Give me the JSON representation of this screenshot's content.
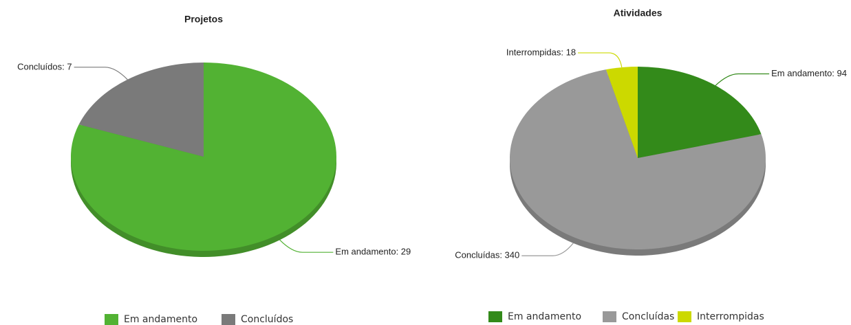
{
  "chart_data": [
    {
      "type": "pie",
      "title": "Projetos",
      "categories": [
        "Em andamento",
        "Concluídos"
      ],
      "values": [
        29,
        7
      ],
      "value_labels": [
        "Em andamento: 29",
        "Concluídos: 7"
      ],
      "colors": [
        "#52b233",
        "#7a7a7a"
      ]
    },
    {
      "type": "pie",
      "title": "Atividades",
      "categories": [
        "Em andamento",
        "Concluídas",
        "Interrompidas"
      ],
      "values": [
        94,
        340,
        18
      ],
      "value_labels": [
        "Em andamento: 94",
        "Concluídas: 340",
        "Interrompidas: 18"
      ],
      "colors": [
        "#338a1a",
        "#999999",
        "#ccd900"
      ]
    }
  ]
}
